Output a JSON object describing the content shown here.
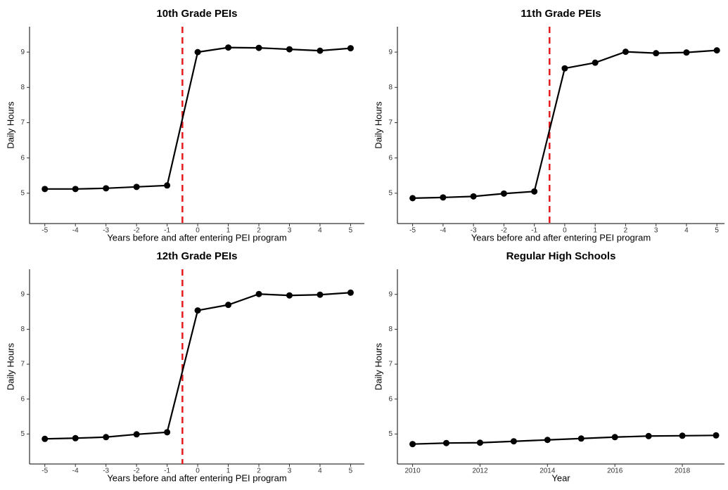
{
  "chart_data": [
    {
      "type": "line",
      "title": "10th Grade PEIs",
      "xlabel": "Years before and after entering PEI program",
      "ylabel": "Daily Hours",
      "x": [
        -5,
        -4,
        -3,
        -2,
        -1,
        0,
        1,
        2,
        3,
        4,
        5
      ],
      "values": [
        5.12,
        5.12,
        5.14,
        5.18,
        5.22,
        9.0,
        9.13,
        9.12,
        9.08,
        9.04,
        9.11
      ],
      "color": "#000000",
      "vline": -0.5,
      "vline_color": "#e41a1c",
      "xlim": [
        -5.5,
        5.45
      ],
      "ylim": [
        4.14,
        9.72
      ],
      "xticks": [
        -5,
        -4,
        -3,
        -2,
        -1,
        0,
        1,
        2,
        3,
        4,
        5
      ],
      "yticks": [
        5,
        6,
        7,
        8,
        9
      ]
    },
    {
      "type": "line",
      "title": "11th Grade PEIs",
      "xlabel": "Years before and after entering PEI program",
      "ylabel": "Daily Hours",
      "x": [
        -5,
        -4,
        -3,
        -2,
        -1,
        0,
        1,
        2,
        3,
        4,
        5
      ],
      "values": [
        4.86,
        4.88,
        4.91,
        4.99,
        5.05,
        8.54,
        8.7,
        9.01,
        8.97,
        8.99,
        9.05
      ],
      "color": "#000000",
      "vline": -0.5,
      "vline_color": "#e41a1c",
      "xlim": [
        -5.5,
        5.25
      ],
      "ylim": [
        4.14,
        9.72
      ],
      "xticks": [
        -5,
        -4,
        -3,
        -2,
        -1,
        0,
        1,
        2,
        3,
        4,
        5
      ],
      "yticks": [
        5,
        6,
        7,
        8,
        9
      ]
    },
    {
      "type": "line",
      "title": "12th Grade PEIs",
      "xlabel": "Years before and after entering PEI program",
      "ylabel": "Daily Hours",
      "x": [
        -5,
        -4,
        -3,
        -2,
        -1,
        0,
        1,
        2,
        3,
        4,
        5
      ],
      "values": [
        4.86,
        4.88,
        4.91,
        4.99,
        5.05,
        8.54,
        8.7,
        9.01,
        8.97,
        8.99,
        9.05
      ],
      "color": "#000000",
      "vline": -0.5,
      "vline_color": "#e41a1c",
      "xlim": [
        -5.5,
        5.45
      ],
      "ylim": [
        4.14,
        9.72
      ],
      "xticks": [
        -5,
        -4,
        -3,
        -2,
        -1,
        0,
        1,
        2,
        3,
        4,
        5
      ],
      "yticks": [
        5,
        6,
        7,
        8,
        9
      ]
    },
    {
      "type": "line",
      "title": "Regular High Schools",
      "xlabel": "Year",
      "ylabel": "Daily Hours",
      "x": [
        2010,
        2011,
        2012,
        2013,
        2014,
        2015,
        2016,
        2017,
        2018,
        2019
      ],
      "values": [
        4.71,
        4.74,
        4.75,
        4.79,
        4.83,
        4.87,
        4.91,
        4.94,
        4.95,
        4.96
      ],
      "color": "#000000",
      "xlim": [
        2009.55,
        2019.25
      ],
      "ylim": [
        4.14,
        9.72
      ],
      "xticks": [
        2010,
        2012,
        2014,
        2016,
        2018
      ],
      "yticks": [
        5,
        6,
        7,
        8,
        9
      ]
    }
  ]
}
